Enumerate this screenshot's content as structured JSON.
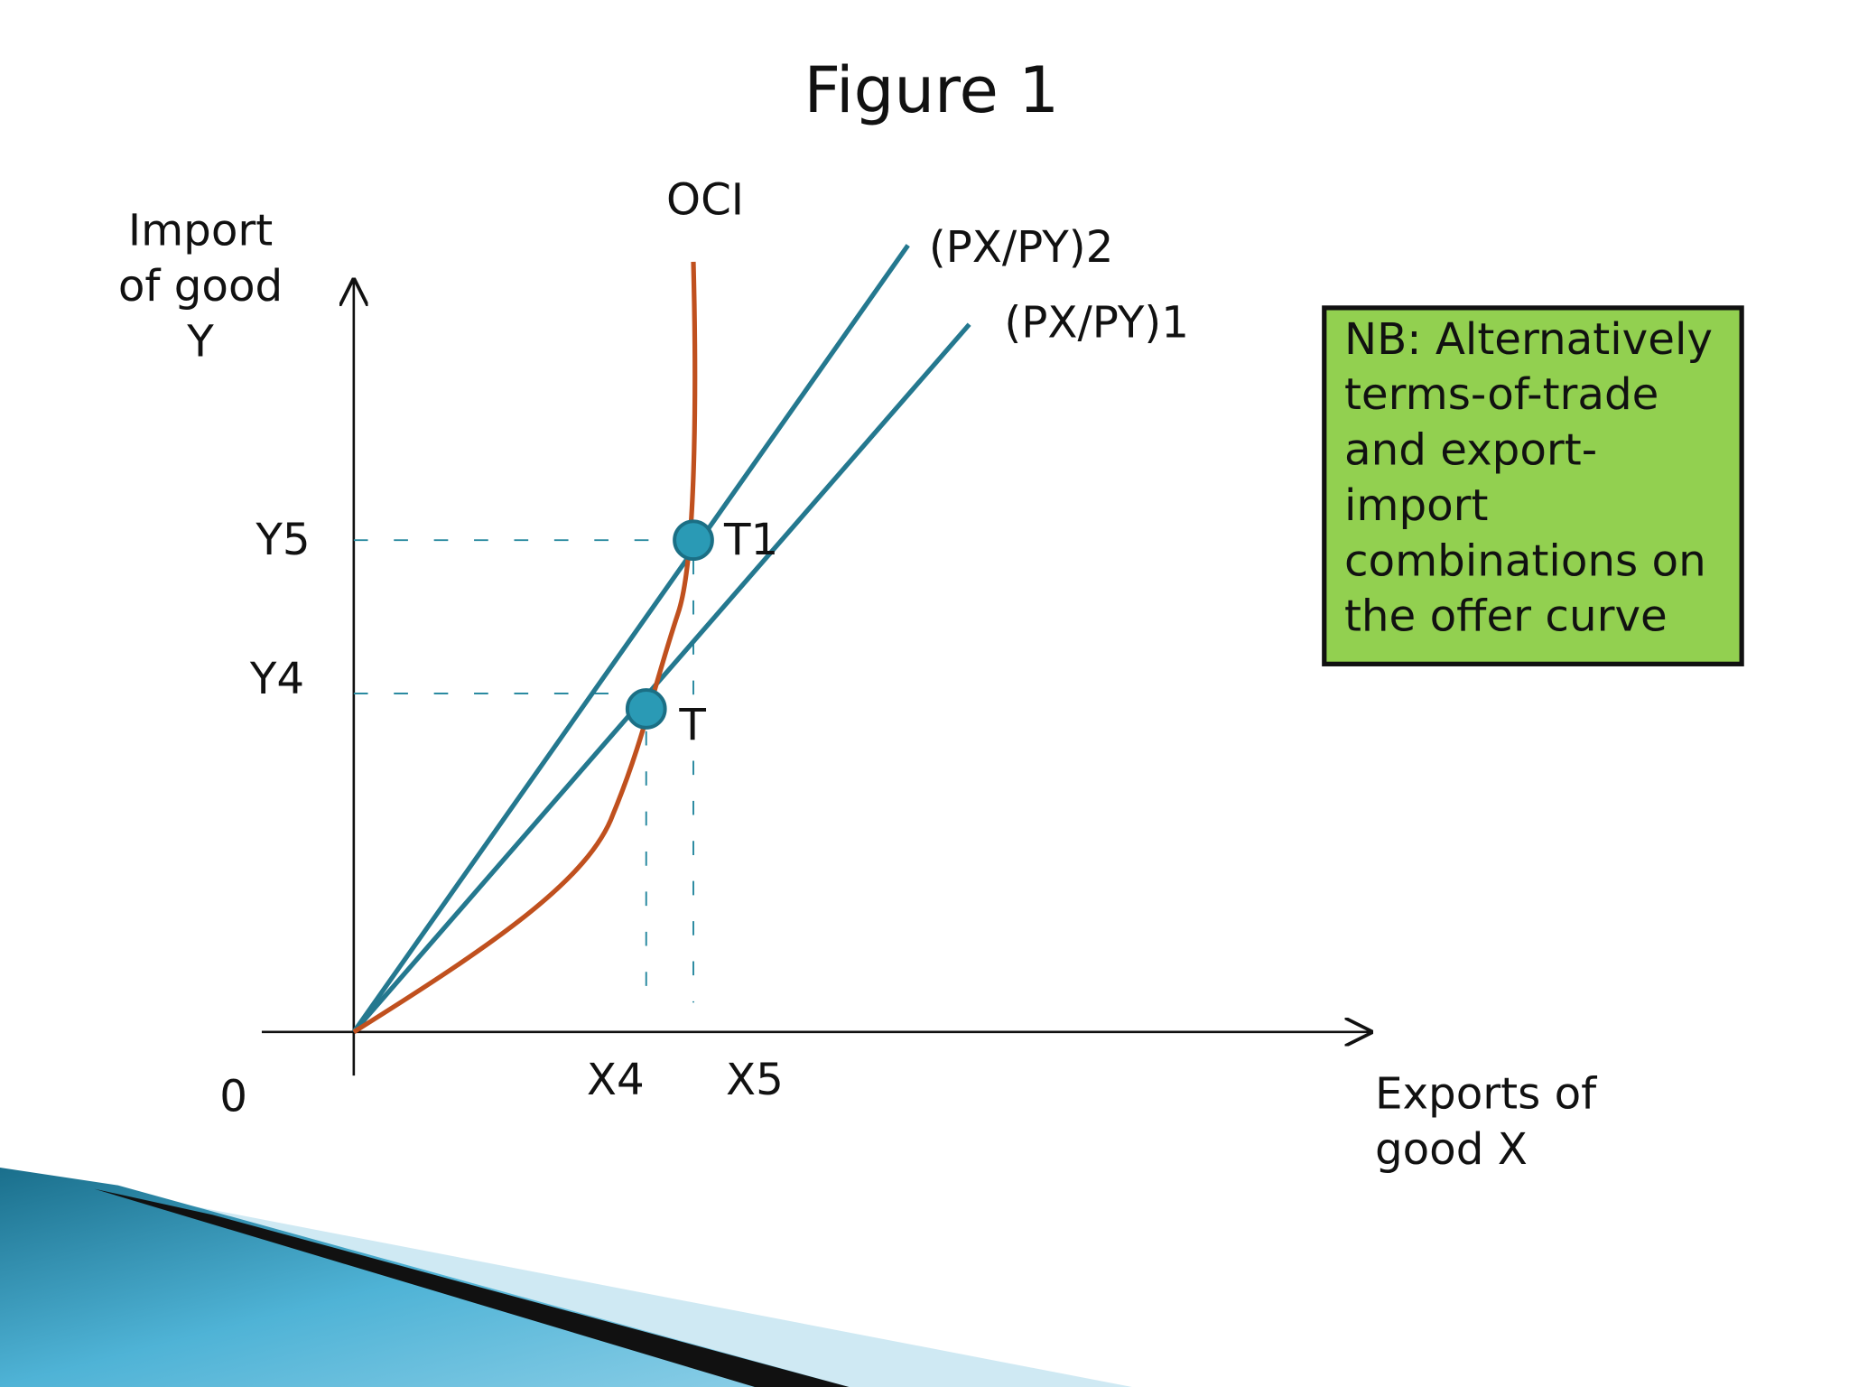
{
  "title": "Figure 1",
  "axes": {
    "y_label": [
      "Import",
      "of good",
      "Y"
    ],
    "x_label": [
      "Exports of",
      "good X"
    ],
    "origin": "0"
  },
  "curves": {
    "offer_curve": "OCI",
    "price_line_2": "(PX/PY)2",
    "price_line_1": "(PX/PY)1"
  },
  "points": [
    {
      "label": "T1"
    },
    {
      "label": "T"
    }
  ],
  "y_labels": [
    "Y5",
    "Y4"
  ],
  "x_labels": [
    "X4",
    "X5"
  ],
  "note": {
    "lines": [
      "NB: Alternatively",
      "terms-of-trade",
      "and export-",
      "import",
      "combinations on",
      "the offer curve"
    ]
  }
}
